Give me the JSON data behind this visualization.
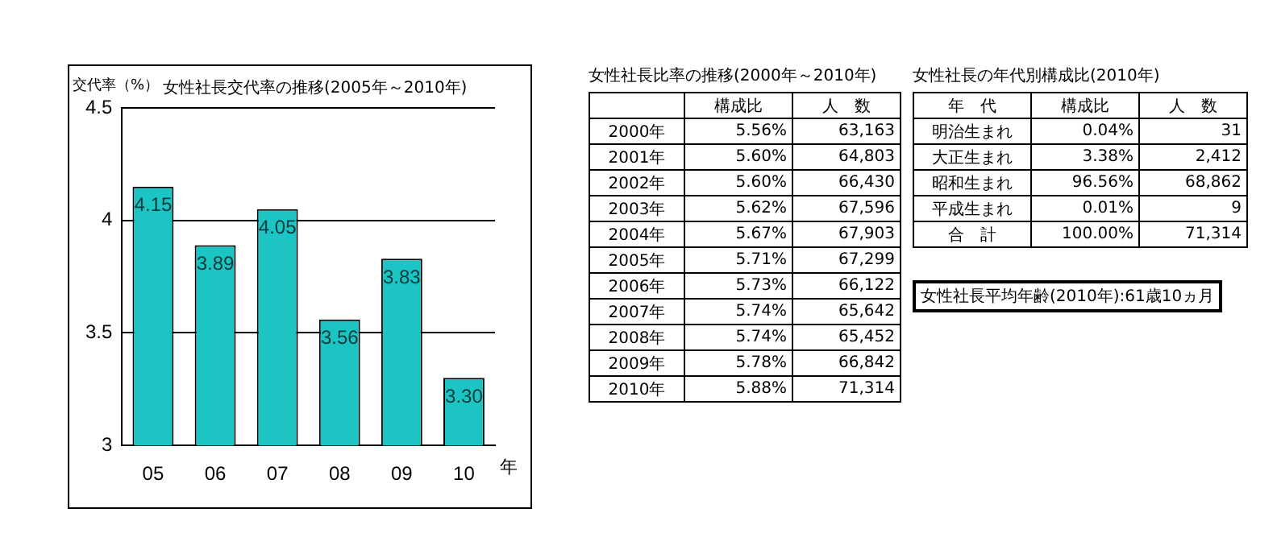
{
  "chart_data": [
    {
      "type": "bar",
      "title": "女性社長交代率の推移(2005年～2010年)",
      "ylabel": "交代率（%）",
      "xlabel": "年",
      "categories": [
        "05",
        "06",
        "07",
        "08",
        "09",
        "10"
      ],
      "values": [
        4.15,
        3.89,
        4.05,
        3.56,
        3.83,
        3.3
      ],
      "value_labels": [
        "4.15",
        "3.89",
        "4.05",
        "3.56",
        "3.83",
        "3.30"
      ],
      "color": "#1cc4c4",
      "ylim": [
        3,
        4.5
      ],
      "yticks": [
        3,
        3.5,
        4,
        4.5
      ],
      "grid": "y"
    },
    {
      "type": "heatmap",
      "title": "女性社長比率の推移(2000年～2010年)",
      "categories": [
        "構成比",
        "人　数"
      ],
      "y_categories": [
        "2000年",
        "2001年",
        "2002年",
        "2003年",
        "2004年",
        "2005年",
        "2006年",
        "2007年",
        "2008年",
        "2009年",
        "2010年"
      ],
      "cells": [
        [
          5.56,
          63163
        ],
        [
          5.6,
          64803
        ],
        [
          5.6,
          66430
        ],
        [
          5.62,
          67596
        ],
        [
          5.67,
          67903
        ],
        [
          5.71,
          67299
        ],
        [
          5.73,
          66122
        ],
        [
          5.74,
          65642
        ],
        [
          5.74,
          65452
        ],
        [
          5.78,
          66842
        ],
        [
          5.88,
          71314
        ]
      ],
      "cell_labels": [
        [
          "5.56%",
          "63,163"
        ],
        [
          "5.60%",
          "64,803"
        ],
        [
          "5.60%",
          "66,430"
        ],
        [
          "5.62%",
          "67,596"
        ],
        [
          "5.67%",
          "67,903"
        ],
        [
          "5.71%",
          "67,299"
        ],
        [
          "5.73%",
          "66,122"
        ],
        [
          "5.74%",
          "65,642"
        ],
        [
          "5.74%",
          "65,452"
        ],
        [
          "5.78%",
          "66,842"
        ],
        [
          "5.88%",
          "71,314"
        ]
      ]
    },
    {
      "type": "heatmap",
      "title": "女性社長の年代別構成比(2010年)",
      "ylabel": "年　代",
      "categories": [
        "構成比",
        "人　数"
      ],
      "y_categories": [
        "明治生まれ",
        "大正生まれ",
        "昭和生まれ",
        "平成生まれ",
        "合　計"
      ],
      "cells": [
        [
          0.04,
          31
        ],
        [
          3.38,
          2412
        ],
        [
          96.56,
          68862
        ],
        [
          0.01,
          9
        ],
        [
          100,
          71314
        ]
      ],
      "cell_labels": [
        [
          "0.04%",
          "31"
        ],
        [
          "3.38%",
          "2,412"
        ],
        [
          "96.56%",
          "68,862"
        ],
        [
          "0.01%",
          "9"
        ],
        [
          "100.00%",
          "71,314"
        ]
      ],
      "annotations": [
        "女性社長平均年齢(2010年):61歳10ヵ月"
      ]
    }
  ]
}
